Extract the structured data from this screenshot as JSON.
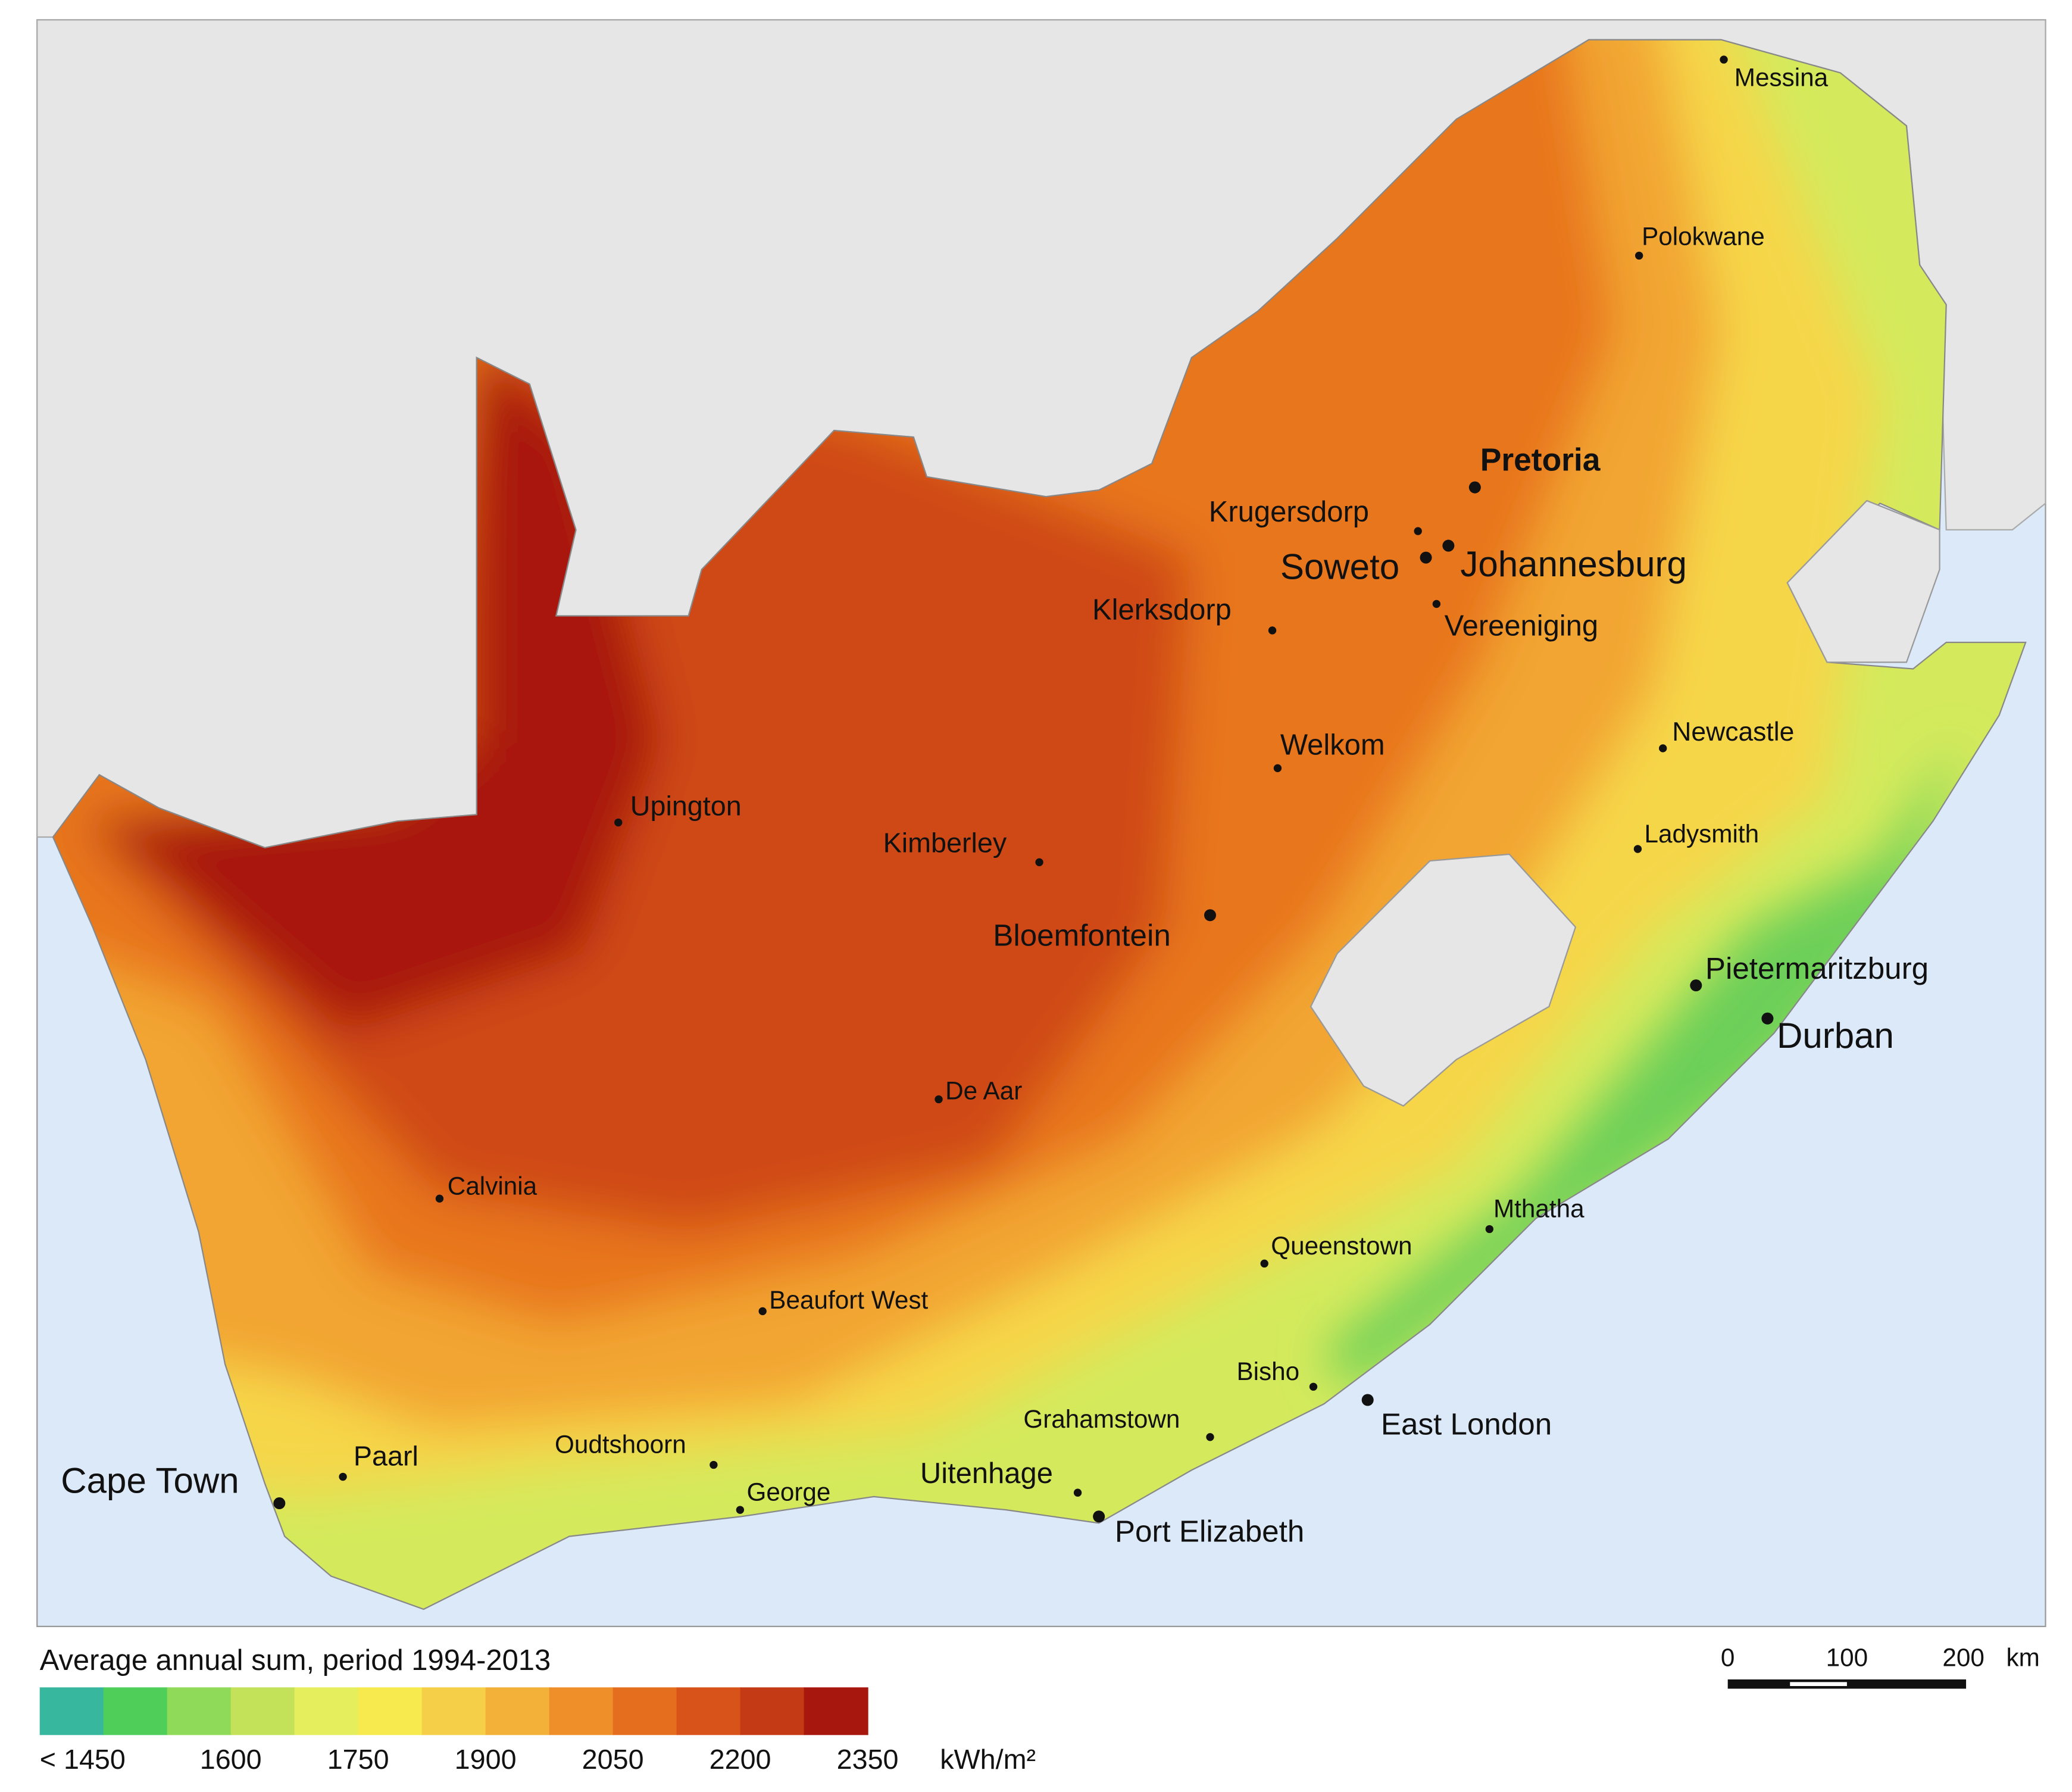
{
  "map": {
    "cities": [
      "Messina",
      "Polokwane",
      "Pretoria",
      "Krugersdorp",
      "Soweto",
      "Johannesburg",
      "Klerksdorp",
      "Vereeniging",
      "Newcastle",
      "Welkom",
      "Upington",
      "Kimberley",
      "Ladysmith",
      "Bloemfontein",
      "Pietermaritzburg",
      "Durban",
      "De Aar",
      "Calvinia",
      "Mthatha",
      "Queenstown",
      "Beaufort West",
      "Bisho",
      "East London",
      "Grahamstown",
      "Oudtshoorn",
      "Paarl",
      "Cape Town",
      "Uitenhage",
      "George",
      "Port Elizabeth"
    ]
  },
  "legend": {
    "title": "Average annual sum, period 1994-2013",
    "colors": [
      "#38b79f",
      "#4fcf5a",
      "#8fda58",
      "#c3e25a",
      "#e5ee5c",
      "#f6ea4e",
      "#f6cf48",
      "#f4b13a",
      "#ee8f2a",
      "#e56e1e",
      "#d8531a",
      "#c33a14",
      "#a8170d"
    ],
    "ticks": [
      "< 1450",
      "1600",
      "1750",
      "1900",
      "2050",
      "2200",
      "2350"
    ],
    "unit": "kWh/m²"
  },
  "scale_bar": {
    "labels": [
      "0",
      "100",
      "200"
    ],
    "unit": "km"
  }
}
